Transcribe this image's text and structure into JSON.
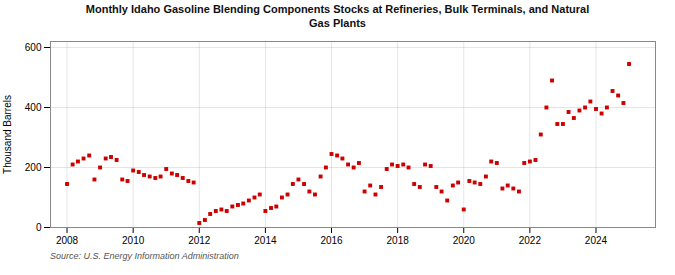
{
  "chart_data": {
    "type": "scatter",
    "title": "Monthly Idaho Gasoline Blending Components Stocks at Refineries, Bulk Terminals, and Natural\nGas Plants",
    "ylabel": "Thousand Barrels",
    "source": "Source: U.S. Energy Information Administration",
    "color": "#cc0000",
    "marker": "square",
    "grid": true,
    "xlim": [
      2007.5,
      2025.8
    ],
    "xticks": [
      2008,
      2010,
      2012,
      2014,
      2016,
      2018,
      2020,
      2022,
      2024
    ],
    "ylim": [
      0,
      620
    ],
    "yticks": [
      0,
      200,
      400,
      600
    ],
    "x": [
      2008.0,
      2008.17,
      2008.33,
      2008.5,
      2008.67,
      2008.83,
      2009.0,
      2009.17,
      2009.33,
      2009.5,
      2009.67,
      2009.83,
      2010.0,
      2010.17,
      2010.33,
      2010.5,
      2010.67,
      2010.83,
      2011.0,
      2011.17,
      2011.33,
      2011.5,
      2011.67,
      2011.83,
      2012.0,
      2012.17,
      2012.33,
      2012.5,
      2012.67,
      2012.83,
      2013.0,
      2013.17,
      2013.33,
      2013.5,
      2013.67,
      2013.83,
      2014.0,
      2014.17,
      2014.33,
      2014.5,
      2014.67,
      2014.83,
      2015.0,
      2015.17,
      2015.33,
      2015.5,
      2015.67,
      2015.83,
      2016.0,
      2016.17,
      2016.33,
      2016.5,
      2016.67,
      2016.83,
      2017.0,
      2017.17,
      2017.33,
      2017.5,
      2017.67,
      2017.83,
      2018.0,
      2018.17,
      2018.33,
      2018.5,
      2018.67,
      2018.83,
      2019.0,
      2019.17,
      2019.33,
      2019.5,
      2019.67,
      2019.83,
      2020.0,
      2020.17,
      2020.33,
      2020.5,
      2020.67,
      2020.83,
      2021.0,
      2021.17,
      2021.33,
      2021.5,
      2021.67,
      2021.83,
      2022.0,
      2022.17,
      2022.33,
      2022.5,
      2022.67,
      2022.83,
      2023.0,
      2023.17,
      2023.33,
      2023.5,
      2023.67,
      2023.83,
      2024.0,
      2024.17,
      2024.33,
      2024.5,
      2024.67,
      2024.83,
      2025.0
    ],
    "values": [
      145,
      210,
      220,
      230,
      240,
      160,
      200,
      230,
      235,
      225,
      160,
      155,
      190,
      185,
      175,
      170,
      165,
      170,
      195,
      180,
      175,
      165,
      155,
      150,
      15,
      25,
      45,
      55,
      60,
      55,
      70,
      75,
      80,
      90,
      100,
      110,
      55,
      65,
      70,
      100,
      110,
      145,
      160,
      145,
      120,
      110,
      170,
      200,
      245,
      240,
      230,
      210,
      200,
      215,
      120,
      140,
      110,
      135,
      195,
      210,
      205,
      210,
      200,
      145,
      135,
      210,
      205,
      135,
      120,
      90,
      140,
      150,
      60,
      155,
      150,
      145,
      170,
      220,
      215,
      130,
      140,
      130,
      120,
      215,
      220,
      225,
      310,
      400,
      490,
      345,
      345,
      385,
      365,
      390,
      400,
      420,
      395,
      380,
      400,
      455,
      440,
      415,
      545
    ]
  }
}
